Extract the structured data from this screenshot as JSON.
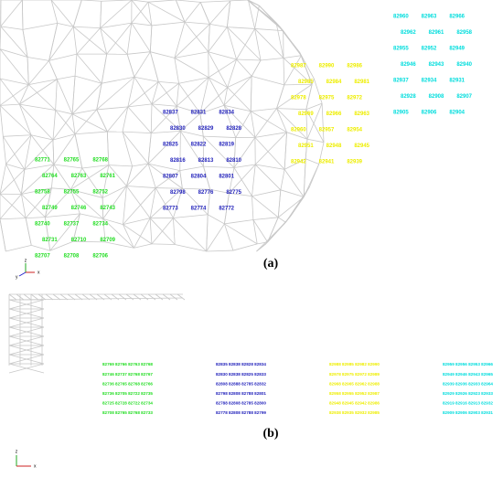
{
  "panel_a": {
    "label": "(a)",
    "clusters": [
      {
        "color": "#22dd22",
        "labels": [
          "82771",
          "82765",
          "82768",
          "82764",
          "82763",
          "82761",
          "82758",
          "82755",
          "82752",
          "82749",
          "82746",
          "82743",
          "82740",
          "82737",
          "82734",
          "82731",
          "82710",
          "82709",
          "82707",
          "82708",
          "82706"
        ]
      },
      {
        "color": "#2222bb",
        "labels": [
          "82837",
          "82831",
          "82834",
          "82830",
          "82829",
          "82828",
          "82825",
          "82822",
          "82819",
          "82816",
          "82813",
          "82810",
          "82807",
          "82804",
          "82801",
          "82798",
          "82776",
          "82775",
          "82773",
          "82774",
          "82772"
        ]
      },
      {
        "color": "#eeee00",
        "labels": [
          "82987",
          "82990",
          "82986",
          "82985",
          "82984",
          "82981",
          "82978",
          "82975",
          "82972",
          "82969",
          "82966",
          "82963",
          "82960",
          "82957",
          "82954",
          "82951",
          "82948",
          "82945",
          "82942",
          "82941",
          "82939"
        ]
      },
      {
        "color": "#00dddd",
        "labels": [
          "82960",
          "82963",
          "82966",
          "82962",
          "82961",
          "82958",
          "82955",
          "82952",
          "82949",
          "82946",
          "82943",
          "82940",
          "82937",
          "82934",
          "82931",
          "82928",
          "82908",
          "82907",
          "82905",
          "82906",
          "82904"
        ]
      }
    ]
  },
  "panel_b": {
    "label": "(b)",
    "groups": [
      {
        "color": "#22dd22",
        "rows": [
          "82769 82766 82763 82768",
          "82746 82737 82768 82767",
          "82736 82765 82768 82766",
          "82736 82705 82722 82735",
          "82725 82728 82722 82734",
          "82708 82765 82768 82733"
        ]
      },
      {
        "color": "#2222bb",
        "rows": [
          "82835 82838 82828 82834",
          "82830 82838 82825 82833",
          "82808 82888 82785 82832",
          "82798 82808 82788 82801",
          "82788 82808 82785 82800",
          "82778 82808 82788 82799"
        ]
      },
      {
        "color": "#eeee00",
        "rows": [
          "82988 82985 82982 82990",
          "82978 82975 82972 82989",
          "82968 82965 82962 82988",
          "82958 82955 82952 82987",
          "82948 82945 82942 82986",
          "82938 82935 82932 82985"
        ]
      },
      {
        "color": "#00dddd",
        "rows": [
          "82959 82956 82953 82966",
          "82949 82946 82943 82965",
          "82939 82936 82933 82964",
          "82929 82926 82923 82933",
          "82919 82916 82913 82932",
          "82909 82906 82903 82931"
        ]
      }
    ]
  },
  "triad": {
    "x": "x",
    "y": "y",
    "z": "z"
  }
}
